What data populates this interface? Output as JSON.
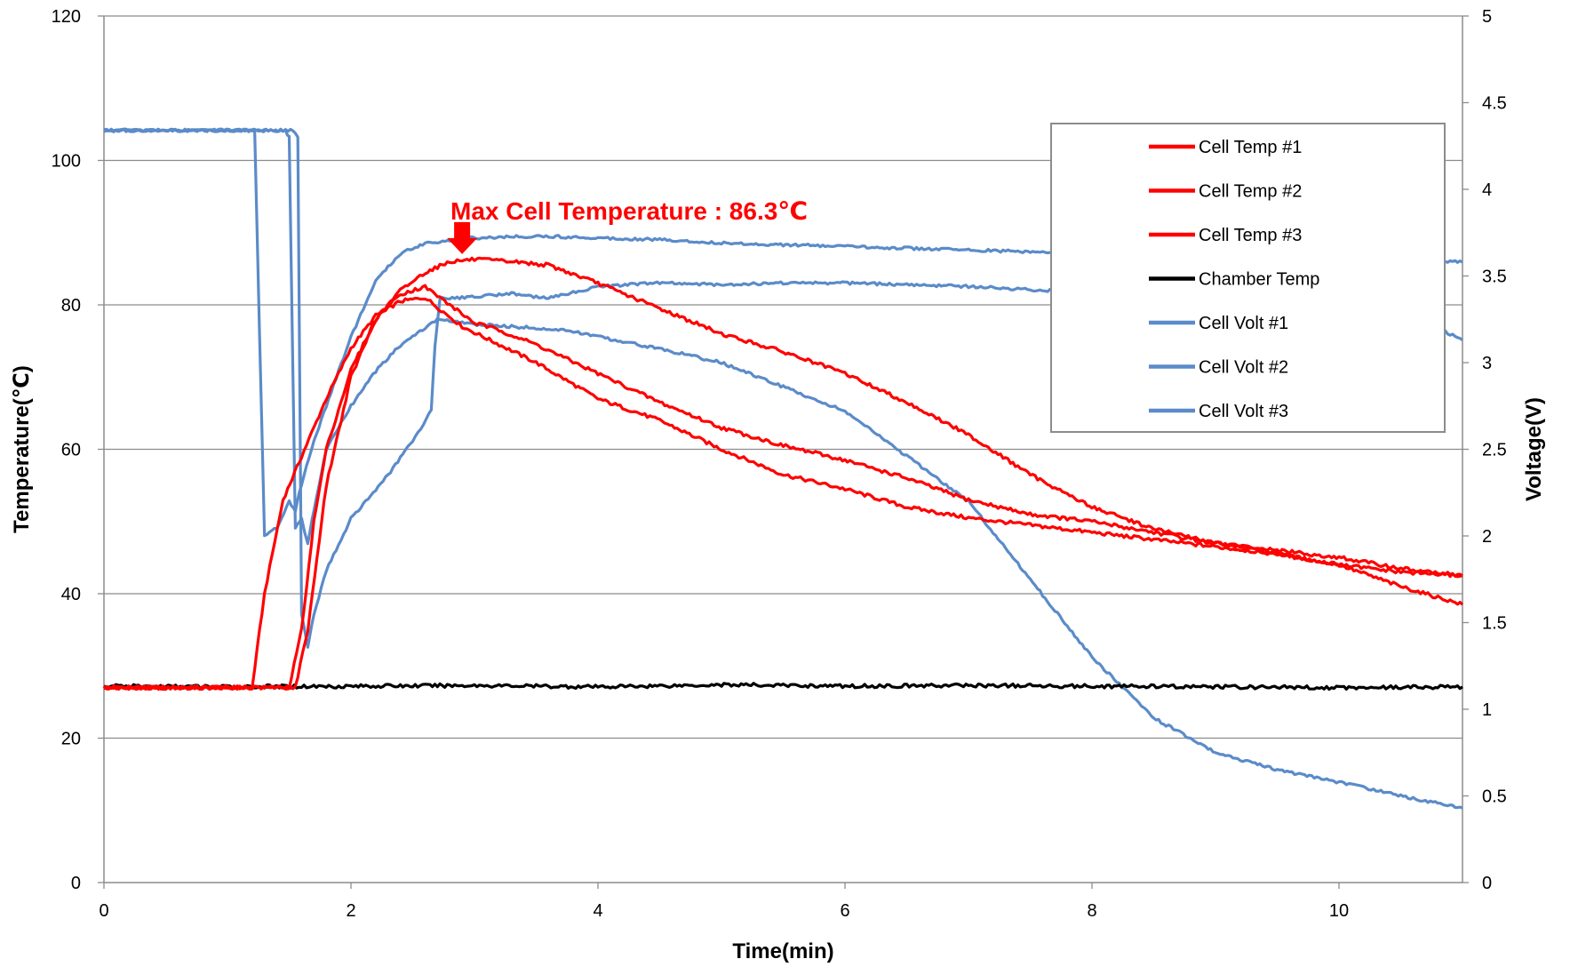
{
  "chart_data": {
    "type": "line",
    "xlabel": "Time(min)",
    "ylabel": "Temperature(℃)",
    "y2label": "Voltage(V)",
    "xlim": [
      0,
      11
    ],
    "ylim": [
      0,
      120
    ],
    "y2lim": [
      0,
      5
    ],
    "x_ticks": [
      0,
      2,
      4,
      6,
      8,
      10
    ],
    "y_ticks": [
      0,
      20,
      40,
      60,
      80,
      100,
      120
    ],
    "y2_ticks": [
      0,
      0.5,
      1,
      1.5,
      2,
      2.5,
      3,
      3.5,
      4,
      4.5,
      5
    ],
    "grid": "horizontal",
    "legend_position": "top-right",
    "annotation": {
      "text": "Max Cell Temperature : 86.3℃",
      "x": 2.9,
      "y": 86.3
    },
    "series": [
      {
        "name": "Cell Temp #1",
        "axis": "left",
        "color": "#ff0000",
        "x": [
          0,
          1.2,
          1.3,
          1.45,
          1.6,
          1.8,
          2.0,
          2.2,
          2.4,
          2.6,
          2.75,
          2.9,
          3.2,
          3.5,
          4,
          4.5,
          5,
          5.5,
          6,
          6.5,
          7,
          7.5,
          8,
          8.5,
          9,
          9.5,
          10,
          10.5,
          11
        ],
        "y": [
          27,
          27,
          40,
          53,
          59,
          67,
          74,
          78.5,
          80.5,
          81,
          79,
          77,
          74.5,
          72,
          67,
          64,
          60,
          56.5,
          54.5,
          52,
          50.5,
          49.5,
          48.5,
          47.5,
          46.5,
          45.5,
          44,
          41,
          38.5
        ]
      },
      {
        "name": "Cell Temp #2",
        "axis": "left",
        "color": "#ff0000",
        "x": [
          0,
          1.5,
          1.6,
          1.7,
          1.8,
          2.0,
          2.2,
          2.4,
          2.6,
          2.8,
          3.0,
          3.2,
          3.5,
          4,
          4.5,
          5,
          5.5,
          6,
          6.5,
          7,
          7.5,
          8,
          8.5,
          9,
          9.5,
          10,
          10.5,
          11
        ],
        "y": [
          27,
          27,
          35,
          50,
          60,
          71,
          78,
          81.5,
          82.5,
          80,
          77.5,
          76.5,
          74.5,
          70.5,
          66.5,
          63,
          60.5,
          58.5,
          56,
          53,
          51,
          50,
          48.5,
          47,
          45.5,
          44,
          43,
          42.5
        ]
      },
      {
        "name": "Cell Temp #3",
        "axis": "left",
        "color": "#ff0000",
        "x": [
          0,
          1.55,
          1.65,
          1.8,
          2.0,
          2.2,
          2.4,
          2.6,
          2.8,
          3.0,
          3.3,
          3.6,
          4,
          4.5,
          5,
          5.5,
          6,
          6.5,
          7,
          7.5,
          8,
          8.5,
          9,
          9.5,
          10,
          10.5,
          11
        ],
        "y": [
          27,
          27,
          35,
          55,
          70,
          78,
          82,
          84.5,
          86,
          86.3,
          86,
          85.5,
          83,
          79.5,
          76,
          73.5,
          70.5,
          66.5,
          62,
          56.5,
          52,
          49,
          47,
          46,
          45,
          43.5,
          42.5
        ]
      },
      {
        "name": "Chamber Temp",
        "axis": "left",
        "color": "#000000",
        "x": [
          0,
          1,
          2,
          3,
          4,
          5,
          6,
          7,
          8,
          9,
          10,
          11
        ],
        "y": [
          27.2,
          27.1,
          27.2,
          27.3,
          27.1,
          27.4,
          27.2,
          27.3,
          27.2,
          27.1,
          27.0,
          27.1
        ]
      },
      {
        "name": "Cell Volt #1",
        "axis": "right",
        "color": "#5b8bc9",
        "x": [
          0,
          1.2,
          1.22,
          1.3,
          1.4,
          1.5,
          1.55,
          1.6,
          1.7,
          1.8,
          2.0,
          2.2,
          2.4,
          2.6,
          3.0,
          3.5,
          4,
          4.5,
          5,
          5.5,
          6,
          6.5,
          7,
          7.5,
          8,
          8.5,
          9,
          9.5,
          10,
          10.5,
          11
        ],
        "y": [
          4.34,
          4.34,
          4.34,
          2.0,
          2.05,
          2.2,
          2.15,
          2.3,
          2.55,
          2.75,
          3.15,
          3.47,
          3.63,
          3.69,
          3.72,
          3.73,
          3.72,
          3.71,
          3.69,
          3.68,
          3.67,
          3.66,
          3.65,
          3.64,
          3.63,
          3.62,
          3.62,
          3.61,
          3.61,
          3.6,
          3.58
        ]
      },
      {
        "name": "Cell Volt #2",
        "axis": "right",
        "color": "#5b8bc9",
        "x": [
          0,
          1.47,
          1.5,
          1.55,
          1.6,
          1.65,
          1.7,
          1.8,
          2.0,
          2.2,
          2.4,
          2.6,
          2.7,
          3.0,
          3.5,
          3.8,
          4,
          4.5,
          5,
          6,
          7,
          8,
          8.5,
          9,
          9.5,
          10,
          10.5,
          11
        ],
        "y": [
          4.34,
          4.34,
          4.3,
          2.05,
          2.1,
          1.95,
          2.15,
          2.5,
          2.75,
          2.95,
          3.1,
          3.2,
          3.25,
          3.22,
          3.2,
          3.18,
          3.15,
          3.08,
          3.0,
          2.72,
          2.2,
          1.3,
          0.95,
          0.75,
          0.65,
          0.58,
          0.5,
          0.43
        ]
      },
      {
        "name": "Cell Volt #3",
        "axis": "right",
        "color": "#5b8bc9",
        "x": [
          0,
          1.53,
          1.57,
          1.6,
          1.65,
          1.7,
          1.8,
          2.0,
          2.3,
          2.5,
          2.65,
          2.68,
          2.72,
          3.0,
          3.3,
          3.6,
          4,
          4.5,
          5,
          5.5,
          6,
          6.5,
          7,
          7.5,
          8,
          8.5,
          9,
          9.5,
          10,
          10.5,
          11
        ],
        "y": [
          4.34,
          4.34,
          4.3,
          1.55,
          1.35,
          1.55,
          1.8,
          2.1,
          2.35,
          2.55,
          2.72,
          3.1,
          3.37,
          3.38,
          3.4,
          3.37,
          3.44,
          3.46,
          3.45,
          3.46,
          3.46,
          3.45,
          3.44,
          3.42,
          3.41,
          3.4,
          3.39,
          3.38,
          3.36,
          3.3,
          3.13
        ]
      }
    ]
  }
}
